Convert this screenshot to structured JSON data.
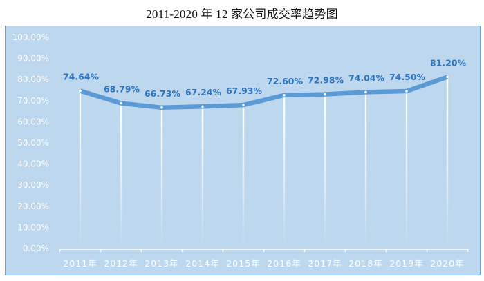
{
  "title": "2011-2020 年 12 家公司成交率趋势图",
  "colors": {
    "background": "#bdd7ee",
    "frame_border": "#6fa0d6",
    "line": "#5b9bd5",
    "data_label": "#2e75c0",
    "axis_text": "#ffffff",
    "drop_line": "#ffffff"
  },
  "chart_data": {
    "type": "line",
    "title": "2011-2020 年 12 家公司成交率趋势图",
    "xlabel": "",
    "ylabel": "",
    "categories": [
      "2011年",
      "2012年",
      "2013年",
      "2014年",
      "2015年",
      "2016年",
      "2017年",
      "2018年",
      "2019年",
      "2020年"
    ],
    "values": [
      74.64,
      68.79,
      66.73,
      67.24,
      67.93,
      72.6,
      72.98,
      74.04,
      74.5,
      81.2
    ],
    "data_labels": [
      "74.64%",
      "68.79%",
      "66.73%",
      "67.24%",
      "67.93%",
      "72.60%",
      "72.98%",
      "74.04%",
      "74.50%",
      "81.20%"
    ],
    "ylim": [
      0,
      100
    ],
    "y_ticks": [
      "0.00%",
      "10.00%",
      "20.00%",
      "30.00%",
      "40.00%",
      "50.00%",
      "60.00%",
      "70.00%",
      "80.00%",
      "90.00%",
      "100.00%"
    ],
    "grid": false,
    "drop_lines": true,
    "legend": "none"
  }
}
